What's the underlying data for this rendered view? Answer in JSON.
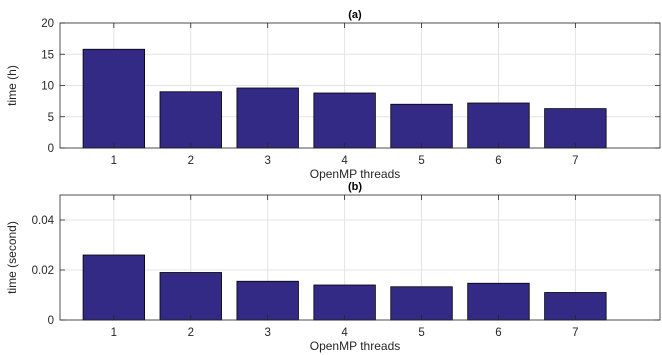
{
  "colors": {
    "bar_fill": "#332a85",
    "bar_stroke": "#000000",
    "grid": "#e3e3e3",
    "axis": "#262626",
    "background": "#ffffff"
  },
  "chart_data": [
    {
      "type": "bar",
      "title": "(a)",
      "xlabel": "OpenMP threads",
      "ylabel": "time (h)",
      "categories": [
        "1",
        "2",
        "3",
        "4",
        "5",
        "6",
        "7"
      ],
      "values": [
        15.8,
        9.0,
        9.6,
        8.8,
        7.0,
        7.2,
        6.3
      ],
      "ylim": [
        0,
        20
      ],
      "yticks": [
        0,
        5,
        10,
        15,
        20
      ],
      "ytick_labels": [
        "0",
        "5",
        "10",
        "15",
        "20"
      ],
      "grid": true,
      "legend": "none"
    },
    {
      "type": "bar",
      "title": "(b)",
      "xlabel": "OpenMP threads",
      "ylabel": "time (second)",
      "categories": [
        "1",
        "2",
        "3",
        "4",
        "5",
        "6",
        "7"
      ],
      "values": [
        0.026,
        0.019,
        0.0155,
        0.014,
        0.0133,
        0.0147,
        0.011
      ],
      "ylim": [
        0,
        0.05
      ],
      "yticks": [
        0,
        0.02,
        0.04
      ],
      "ytick_labels": [
        "0",
        "0.02",
        "0.04"
      ],
      "grid": true,
      "legend": "none"
    }
  ]
}
